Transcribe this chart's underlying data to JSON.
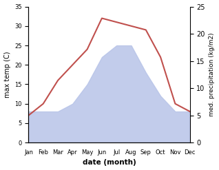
{
  "months": [
    "Jan",
    "Feb",
    "Mar",
    "Apr",
    "May",
    "Jun",
    "Jul",
    "Aug",
    "Sep",
    "Oct",
    "Nov",
    "Dec"
  ],
  "temp": [
    7,
    10,
    16,
    20,
    24,
    32,
    31,
    30,
    29,
    22,
    10,
    8
  ],
  "precip": [
    8,
    8,
    8,
    10,
    15,
    22,
    25,
    25,
    18,
    12,
    8,
    8
  ],
  "precip_right": [
    6,
    6,
    6,
    7,
    11,
    16,
    18,
    18,
    13,
    9,
    6,
    6
  ],
  "temp_color": "#c0504d",
  "precip_color": "#b8c4e8",
  "temp_ylim": [
    0,
    35
  ],
  "precip_ylim": [
    0,
    25
  ],
  "temp_yticks": [
    0,
    5,
    10,
    15,
    20,
    25,
    30,
    35
  ],
  "precip_yticks": [
    0,
    5,
    10,
    15,
    20,
    25
  ],
  "xlabel": "date (month)",
  "ylabel_left": "max temp (C)",
  "ylabel_right": "med. precipitation (kg/m2)",
  "bg_color": "#ffffff",
  "linewidth": 1.5
}
